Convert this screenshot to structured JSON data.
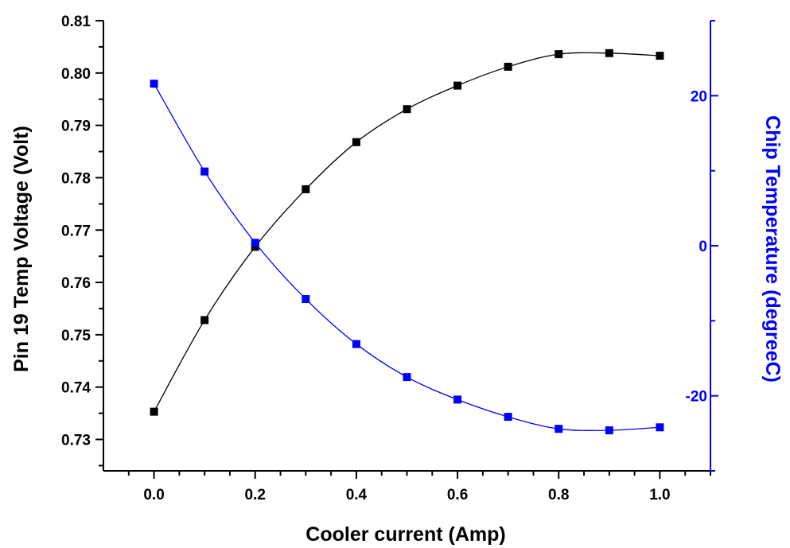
{
  "chart_data": {
    "type": "line",
    "xlabel": "Cooler current (Amp)",
    "ylabel": "Pin 19 Temp Voltage (Volt)",
    "y2label": "Chip Temperature (degreeC)",
    "xlim": [
      -0.1,
      1.1
    ],
    "ylim": [
      0.724,
      0.81
    ],
    "y2lim": [
      -30,
      30
    ],
    "x": [
      0.0,
      0.1,
      0.2,
      0.3,
      0.4,
      0.5,
      0.6,
      0.7,
      0.8,
      0.9,
      1.0
    ],
    "x_ticks": [
      "0.0",
      "0.2",
      "0.4",
      "0.6",
      "0.8",
      "1.0"
    ],
    "x_tick_values": [
      0.0,
      0.2,
      0.4,
      0.6,
      0.8,
      1.0
    ],
    "y_ticks": [
      "0.73",
      "0.74",
      "0.75",
      "0.76",
      "0.77",
      "0.78",
      "0.79",
      "0.80",
      "0.81"
    ],
    "y_tick_values": [
      0.73,
      0.74,
      0.75,
      0.76,
      0.77,
      0.78,
      0.79,
      0.8,
      0.81
    ],
    "y2_ticks": [
      "-20",
      "0",
      "20"
    ],
    "y2_tick_values": [
      -20,
      0,
      20
    ],
    "grid": false,
    "series": [
      {
        "axis": "left",
        "color": "#000000",
        "marker": "square",
        "values": [
          0.7353,
          0.7528,
          0.7668,
          0.7778,
          0.7868,
          0.7931,
          0.7976,
          0.8012,
          0.8036,
          0.8038,
          0.8033
        ]
      },
      {
        "axis": "right",
        "color": "#0000ff",
        "marker": "square",
        "values": [
          21.6,
          9.9,
          0.4,
          -7.1,
          -13.1,
          -17.5,
          -20.5,
          -22.8,
          -24.4,
          -24.6,
          -24.2
        ]
      }
    ]
  }
}
